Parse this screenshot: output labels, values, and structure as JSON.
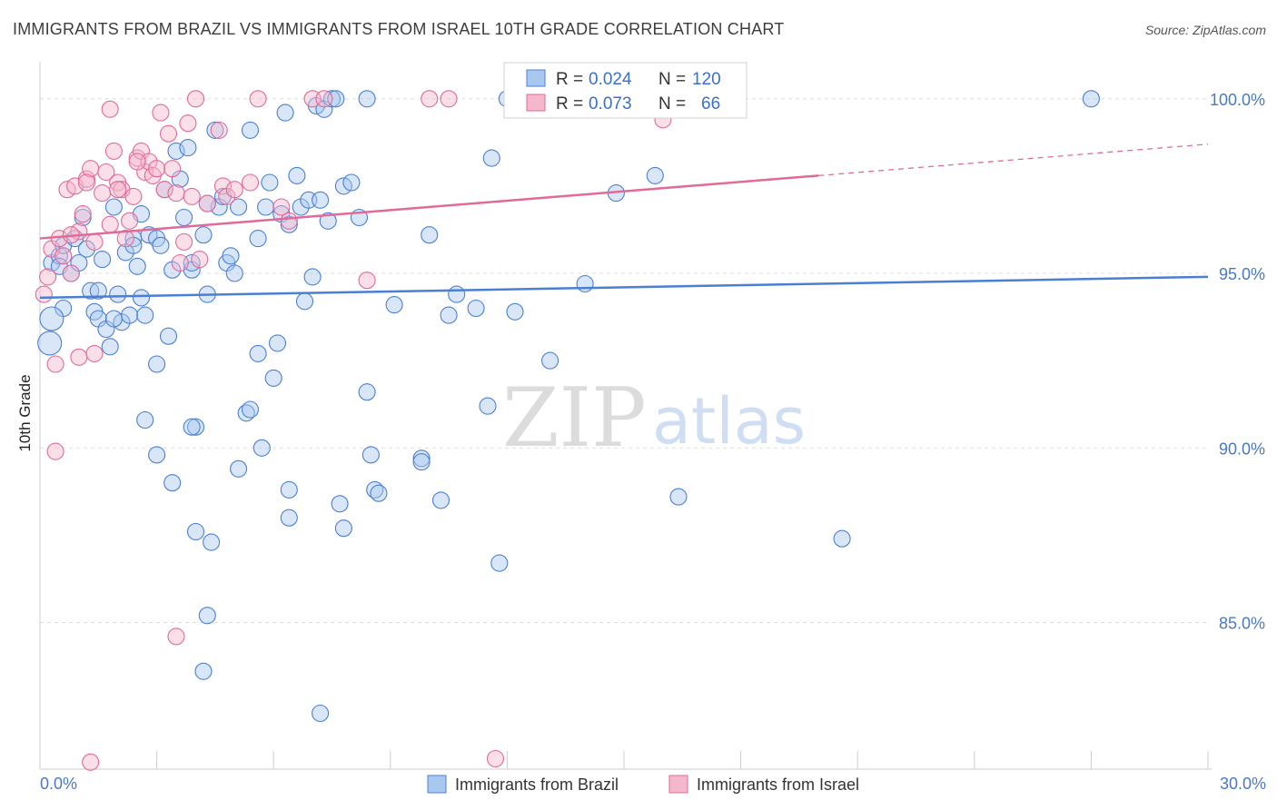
{
  "header": {
    "title": "IMMIGRANTS FROM BRAZIL VS IMMIGRANTS FROM ISRAEL 10TH GRADE CORRELATION CHART",
    "source": "Source: ZipAtlas.com"
  },
  "watermark": {
    "zip": "ZIP",
    "atlas": "atlas"
  },
  "colors": {
    "blue": "#4a7fd4",
    "blue_fill": "#a9c8f0",
    "pink": "#e06a98",
    "pink_fill": "#f5b8cb",
    "grid": "#dddddd",
    "tick_text": "#4a78c8"
  },
  "legend": {
    "r_label": "R =",
    "n_label": "N =",
    "brazil": {
      "r": "0.024",
      "n": "120"
    },
    "israel": {
      "r": "0.073",
      "n": "66"
    }
  },
  "bottom_legend": {
    "brazil": "Immigrants from Brazil",
    "israel": "Immigrants from Israel"
  },
  "chart_data": {
    "type": "scatter",
    "title": "IMMIGRANTS FROM BRAZIL VS IMMIGRANTS FROM ISRAEL 10TH GRADE CORRELATION CHART",
    "xlabel": "",
    "ylabel": "10th Grade",
    "xlim": [
      0,
      30
    ],
    "ylim": [
      80.8,
      100.8
    ],
    "x_tick_labels": [
      "0.0%",
      "30.0%"
    ],
    "y_ticks": [
      85,
      90,
      95,
      100
    ],
    "y_tick_labels": [
      "85.0%",
      "90.0%",
      "95.0%",
      "100.0%"
    ],
    "series": [
      {
        "name": "Immigrants from Brazil",
        "color": "#4a7fd4",
        "trend": {
          "x": [
            0,
            30
          ],
          "y": [
            94.3,
            94.9
          ]
        },
        "points": [
          [
            0.3,
            95.3
          ],
          [
            0.5,
            95.5
          ],
          [
            0.6,
            95.8
          ],
          [
            0.5,
            95.2
          ],
          [
            0.8,
            95.0
          ],
          [
            0.9,
            96.0
          ],
          [
            1.0,
            95.3
          ],
          [
            1.1,
            96.6
          ],
          [
            1.2,
            95.7
          ],
          [
            1.3,
            94.5
          ],
          [
            1.4,
            93.9
          ],
          [
            1.5,
            93.7
          ],
          [
            1.6,
            95.4
          ],
          [
            1.7,
            93.4
          ],
          [
            1.8,
            92.9
          ],
          [
            1.9,
            96.9
          ],
          [
            2.0,
            94.4
          ],
          [
            2.1,
            93.6
          ],
          [
            2.2,
            95.6
          ],
          [
            2.3,
            93.8
          ],
          [
            2.4,
            96.0
          ],
          [
            2.5,
            95.2
          ],
          [
            2.6,
            96.7
          ],
          [
            2.7,
            93.8
          ],
          [
            2.8,
            96.1
          ],
          [
            3.0,
            92.4
          ],
          [
            3.0,
            96.0
          ],
          [
            3.1,
            95.8
          ],
          [
            3.2,
            97.4
          ],
          [
            3.3,
            93.2
          ],
          [
            3.4,
            95.1
          ],
          [
            3.5,
            98.5
          ],
          [
            3.6,
            97.7
          ],
          [
            3.7,
            96.6
          ],
          [
            3.8,
            98.6
          ],
          [
            3.9,
            95.1
          ],
          [
            4.0,
            90.6
          ],
          [
            4.2,
            96.1
          ],
          [
            4.3,
            94.4
          ],
          [
            4.5,
            99.1
          ],
          [
            4.6,
            96.9
          ],
          [
            4.7,
            97.2
          ],
          [
            4.8,
            95.3
          ],
          [
            4.9,
            95.5
          ],
          [
            5.0,
            95.0
          ],
          [
            5.1,
            96.9
          ],
          [
            5.3,
            91.0
          ],
          [
            5.4,
            91.1
          ],
          [
            5.6,
            96.0
          ],
          [
            5.7,
            90.0
          ],
          [
            5.8,
            96.9
          ],
          [
            5.9,
            97.6
          ],
          [
            6.0,
            92.0
          ],
          [
            6.1,
            93.0
          ],
          [
            6.2,
            96.7
          ],
          [
            6.3,
            99.6
          ],
          [
            6.4,
            96.4
          ],
          [
            6.6,
            97.8
          ],
          [
            6.7,
            96.9
          ],
          [
            6.8,
            94.2
          ],
          [
            6.9,
            97.1
          ],
          [
            7.0,
            94.9
          ],
          [
            7.1,
            99.8
          ],
          [
            7.2,
            97.1
          ],
          [
            7.3,
            99.7
          ],
          [
            7.4,
            96.5
          ],
          [
            7.5,
            100.0
          ],
          [
            7.6,
            100.0
          ],
          [
            7.8,
            97.5
          ],
          [
            8.0,
            97.6
          ],
          [
            8.2,
            96.6
          ],
          [
            8.4,
            91.6
          ],
          [
            8.5,
            89.8
          ],
          [
            8.6,
            88.8
          ],
          [
            9.1,
            94.1
          ],
          [
            9.8,
            89.7
          ],
          [
            10.0,
            96.1
          ],
          [
            10.3,
            88.5
          ],
          [
            10.5,
            93.8
          ],
          [
            10.7,
            94.4
          ],
          [
            11.2,
            94.0
          ],
          [
            11.5,
            91.2
          ],
          [
            11.6,
            98.3
          ],
          [
            11.8,
            86.7
          ],
          [
            12.2,
            93.9
          ],
          [
            12.0,
            100.0
          ],
          [
            13.1,
            92.5
          ],
          [
            14.0,
            94.7
          ],
          [
            14.8,
            97.3
          ],
          [
            15.8,
            97.8
          ],
          [
            16.4,
            88.6
          ],
          [
            20.6,
            87.4
          ],
          [
            27.0,
            100.0
          ],
          [
            0.6,
            94.0
          ],
          [
            1.5,
            94.5
          ],
          [
            2.7,
            90.8
          ],
          [
            3.0,
            89.8
          ],
          [
            3.4,
            89.0
          ],
          [
            3.9,
            90.6
          ],
          [
            4.0,
            87.6
          ],
          [
            4.3,
            85.2
          ],
          [
            4.2,
            83.6
          ],
          [
            4.4,
            87.3
          ],
          [
            5.1,
            89.4
          ],
          [
            5.6,
            92.7
          ],
          [
            6.4,
            88.0
          ],
          [
            6.4,
            88.8
          ],
          [
            7.2,
            82.4
          ],
          [
            7.7,
            88.4
          ],
          [
            7.8,
            87.7
          ],
          [
            8.7,
            88.7
          ],
          [
            9.8,
            89.6
          ],
          [
            3.9,
            95.3
          ],
          [
            2.4,
            95.8
          ],
          [
            5.4,
            99.1
          ],
          [
            4.3,
            97.0
          ],
          [
            2.6,
            94.3
          ],
          [
            1.9,
            93.7
          ],
          [
            8.4,
            100.0
          ],
          [
            0.3,
            93.7
          ]
        ]
      },
      {
        "name": "Immigrants from Israel",
        "color": "#e06a98",
        "trend": {
          "x": [
            0,
            20
          ],
          "y": [
            96.0,
            97.8
          ]
        },
        "trend_dashed": {
          "x": [
            20,
            30
          ],
          "y": [
            97.8,
            98.7
          ]
        },
        "points": [
          [
            0.1,
            94.4
          ],
          [
            0.3,
            95.7
          ],
          [
            0.5,
            96.0
          ],
          [
            0.6,
            95.5
          ],
          [
            0.7,
            97.4
          ],
          [
            0.8,
            95.0
          ],
          [
            0.9,
            97.5
          ],
          [
            1.0,
            96.2
          ],
          [
            1.1,
            96.7
          ],
          [
            1.2,
            97.7
          ],
          [
            1.3,
            98.0
          ],
          [
            1.4,
            95.9
          ],
          [
            1.6,
            97.3
          ],
          [
            1.7,
            97.9
          ],
          [
            1.8,
            96.4
          ],
          [
            1.9,
            98.5
          ],
          [
            2.0,
            97.6
          ],
          [
            2.1,
            97.4
          ],
          [
            2.2,
            96.0
          ],
          [
            2.3,
            96.5
          ],
          [
            2.4,
            97.2
          ],
          [
            2.5,
            98.3
          ],
          [
            2.6,
            98.5
          ],
          [
            2.7,
            97.9
          ],
          [
            2.8,
            98.2
          ],
          [
            2.9,
            97.8
          ],
          [
            3.0,
            98.0
          ],
          [
            3.1,
            99.6
          ],
          [
            3.2,
            97.4
          ],
          [
            3.3,
            99.0
          ],
          [
            3.4,
            98.0
          ],
          [
            3.5,
            97.3
          ],
          [
            3.6,
            95.3
          ],
          [
            3.7,
            95.9
          ],
          [
            3.8,
            99.3
          ],
          [
            4.0,
            100.0
          ],
          [
            4.1,
            95.4
          ],
          [
            4.3,
            97.0
          ],
          [
            4.6,
            99.1
          ],
          [
            4.7,
            97.5
          ],
          [
            4.8,
            97.2
          ],
          [
            5.0,
            97.4
          ],
          [
            5.4,
            97.6
          ],
          [
            5.6,
            100.0
          ],
          [
            6.2,
            96.9
          ],
          [
            6.4,
            96.5
          ],
          [
            7.0,
            100.0
          ],
          [
            7.3,
            100.0
          ],
          [
            8.4,
            94.8
          ],
          [
            10.0,
            100.0
          ],
          [
            10.5,
            100.0
          ],
          [
            16.0,
            99.4
          ],
          [
            0.2,
            94.9
          ],
          [
            0.4,
            92.4
          ],
          [
            1.0,
            92.6
          ],
          [
            1.4,
            92.7
          ],
          [
            3.5,
            84.6
          ],
          [
            1.3,
            81.0
          ],
          [
            11.7,
            81.1
          ],
          [
            0.4,
            89.9
          ],
          [
            2.5,
            98.2
          ],
          [
            1.8,
            99.7
          ],
          [
            2.0,
            97.4
          ],
          [
            0.8,
            96.1
          ],
          [
            1.2,
            97.6
          ],
          [
            3.9,
            97.2
          ]
        ]
      }
    ],
    "legend_entries": [
      {
        "name": "Immigrants from Brazil",
        "r": "0.024",
        "n": "120"
      },
      {
        "name": "Immigrants from Israel",
        "r": "0.073",
        "n": "66"
      }
    ]
  }
}
